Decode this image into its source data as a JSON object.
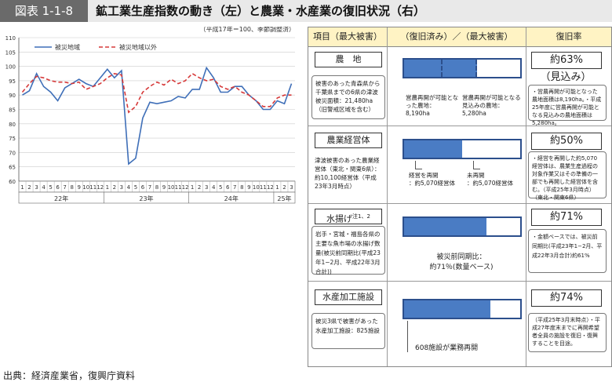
{
  "header": {
    "figure_label": "図表 1-1-8",
    "title": "鉱工業生産指数の動き（左）と農業・水産業の復旧状況（右）"
  },
  "chart_data": {
    "type": "line",
    "note": "（平成17年＝100、季節調整済）",
    "ylim": [
      60,
      110
    ],
    "yticks": [
      60,
      65,
      70,
      75,
      80,
      85,
      90,
      95,
      100,
      105,
      110
    ],
    "x_labels": [
      "1",
      "2",
      "3",
      "4",
      "5",
      "6",
      "7",
      "8",
      "9",
      "10",
      "11",
      "12",
      "1",
      "2",
      "3",
      "4",
      "5",
      "6",
      "7",
      "8",
      "9",
      "10",
      "11",
      "12",
      "1",
      "2",
      "3",
      "4",
      "5",
      "6",
      "7",
      "8",
      "9",
      "10",
      "11",
      "12",
      "1",
      "2",
      "3"
    ],
    "year_labels": [
      {
        "label": "22年",
        "start": 0,
        "end": 11
      },
      {
        "label": "23年",
        "start": 12,
        "end": 23
      },
      {
        "label": "24年",
        "start": 24,
        "end": 35
      },
      {
        "label": "25年",
        "start": 36,
        "end": 38
      }
    ],
    "series": [
      {
        "name": "被災地域",
        "color": "#3f6fb8",
        "dash": false,
        "values": [
          90,
          91.5,
          97.5,
          93,
          91,
          88,
          92.5,
          94,
          95.5,
          94,
          93,
          96,
          99,
          96,
          98.5,
          66,
          68,
          82,
          87.5,
          87,
          87.5,
          88,
          89.5,
          89,
          92,
          92,
          99.5,
          96,
          91,
          91,
          93,
          93,
          90,
          88,
          85,
          85,
          88,
          87,
          94
        ]
      },
      {
        "name": "被災地域以外",
        "color": "#d63a3a",
        "dash": true,
        "values": [
          91,
          94,
          96.5,
          96,
          95,
          94.5,
          94.5,
          94,
          94.5,
          92,
          93,
          94,
          96,
          97.5,
          97,
          84,
          86,
          91,
          93,
          94.5,
          93.5,
          95.5,
          94,
          95,
          97.5,
          96,
          95,
          95.5,
          93,
          92,
          93,
          91,
          90,
          88,
          86,
          86,
          89,
          90,
          90
        ]
      }
    ]
  },
  "table": {
    "headers": {
      "item": "項目（最大被害）",
      "status": "（復旧済み）／（最大被害）",
      "rate": "復旧率"
    },
    "rows": [
      {
        "item": "農　地",
        "desc": "被害のあった青森県から千葉県までの6県の津波被災面積：21,480ha（旧警戒区域を含む）",
        "fill_fraction": 0.32,
        "dashed_fraction": 0.31,
        "note_left": "営農再開が可能となった農地：",
        "note_left_val": "8,190ha",
        "note_right": "営農再開が可能となる見込みの農地：",
        "note_right_val": "5,280ha",
        "rate": "約63%",
        "rate_sub": "（見込み）",
        "rate_desc": "・営農再開が可能となった農地面積は8,190ha。・平成25年度に営農再開が可能となる見込みの農地面積は5,280ha。"
      },
      {
        "item": "農業経営体",
        "desc": "津波被害のあった農業経営体（東北・関東6県）：約10,100経営体（平成23年3月時点）",
        "fill_fraction": 0.5,
        "note_left": "経営を再開",
        "note_left_val": "：約5,070経営体",
        "note_right": "未再開",
        "note_right_val": "：約5,070経営体",
        "rate": "約50%",
        "rate_desc": "・経営を再開した約5,070経営体は、農業生産過程の対象作業又はその準備の一部でも再開した経営体を含む。（平成25年3月時点）（東北・関東6県）"
      },
      {
        "item": "水揚げ",
        "item_sup": "注1、2",
        "desc": "岩手・宮城・福島各県の主要な魚市場の水揚げ数量(被災前同期比(平成23年1−2月、平成22年3月合計))",
        "fill_fraction": 0.71,
        "note_center": "被災前同期比：",
        "note_center2": "約71％(数量ベース)",
        "rate": "約71%",
        "rate_desc": "・金額ベースでは、被災前同期比(平成23年1−2月、平成22年3月合計)約61%"
      },
      {
        "item": "水産加工施設",
        "desc": "被災3県で被害があった水産加工施設：825施設",
        "fill_fraction": 0.74,
        "note_center": "608施設が業務再開",
        "rate": "約74%",
        "rate_desc": "（平成25年3月末時点）・平成27年度末までに再開希望者全員の施設を復旧・復興することを目途。"
      }
    ]
  },
  "source": "出典：経済産業省，復興庁資料"
}
